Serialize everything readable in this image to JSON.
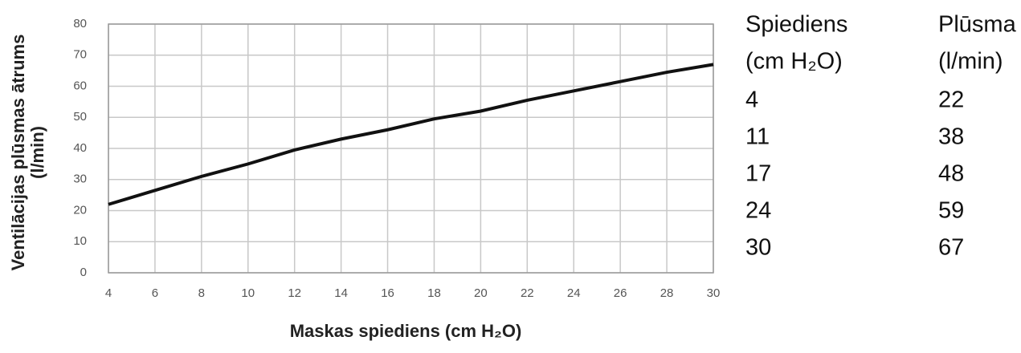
{
  "chart_data": {
    "type": "line",
    "xlabel": "Maskas spiediens (cm H₂O)",
    "ylabel": [
      "Ventilācijas plūsmas ātrums",
      "(l/min)"
    ],
    "x": [
      4,
      6,
      8,
      10,
      12,
      14,
      16,
      18,
      20,
      22,
      24,
      26,
      28,
      30
    ],
    "values": [
      22,
      26.5,
      31,
      35,
      39.5,
      43,
      46,
      49.5,
      52,
      55.5,
      58.5,
      61.5,
      64.5,
      67
    ],
    "color": "#111111",
    "xlim": [
      4,
      30
    ],
    "xticks": [
      4,
      6,
      8,
      10,
      12,
      14,
      16,
      18,
      20,
      22,
      24,
      26,
      28,
      30
    ],
    "ylim": [
      0,
      80
    ],
    "yticks": [
      0,
      10,
      20,
      30,
      40,
      50,
      60,
      70,
      80
    ],
    "grid": true
  },
  "table": {
    "header": [
      [
        "Spiediens",
        "(cm H₂O)"
      ],
      [
        "Plūsma",
        "(l/min)"
      ]
    ],
    "rows": [
      [
        4,
        22
      ],
      [
        11,
        38
      ],
      [
        17,
        48
      ],
      [
        24,
        59
      ],
      [
        30,
        67
      ]
    ]
  }
}
